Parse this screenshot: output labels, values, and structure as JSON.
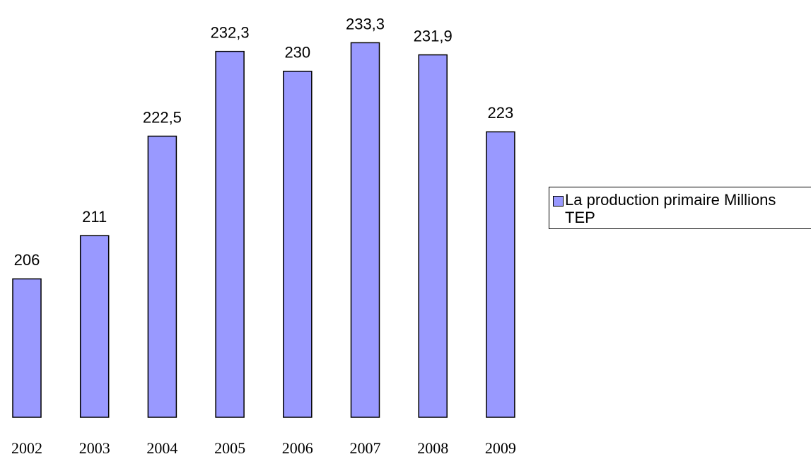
{
  "chart_data": {
    "type": "bar",
    "categories": [
      "2002",
      "2003",
      "2004",
      "2005",
      "2006",
      "2007",
      "2008",
      "2009"
    ],
    "series": [
      {
        "name": "La production primaire Millions TEP",
        "color": "#9999ff",
        "values": [
          206,
          211,
          222.5,
          232.3,
          230,
          233.3,
          231.9,
          223
        ],
        "value_labels": [
          "206",
          "211",
          "222,5",
          "232,3",
          "230",
          "233,3",
          "231,9",
          "223"
        ]
      }
    ],
    "ylim": [
      190,
      240
    ],
    "legend": "right"
  }
}
